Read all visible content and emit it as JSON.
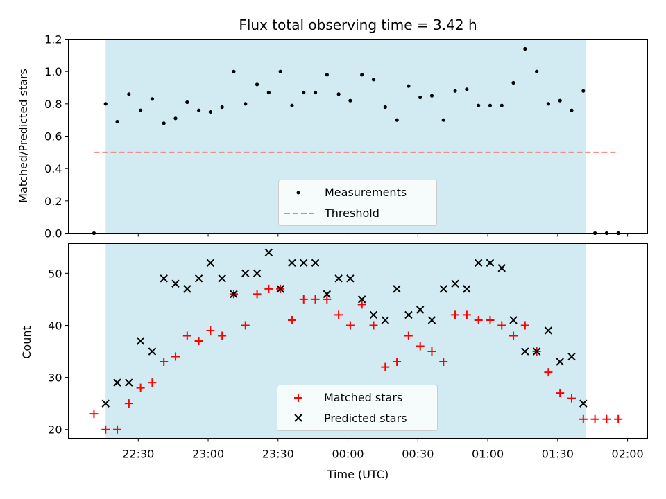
{
  "colors": {
    "shade": "#add8e6",
    "measurement": "#000000",
    "threshold": "#f08080",
    "matched": "#ff0000",
    "predicted": "#000000"
  },
  "chart_data": [
    {
      "type": "scatter",
      "title": "Flux total observing time = 3.42 h",
      "ylabel": "Matched/Predicted stars",
      "xlabel": "",
      "ylim": [
        0,
        1.2
      ],
      "yticks": [
        "0.0",
        "0.2",
        "0.4",
        "0.6",
        "0.8",
        "1.0",
        "1.2"
      ],
      "shaded_interval": [
        "22:16",
        "01:42"
      ],
      "legend_position": "lower center",
      "series": [
        {
          "name": "Measurements",
          "marker": "dot",
          "x": [
            "22:11",
            "22:16",
            "22:21",
            "22:26",
            "22:31",
            "22:36",
            "22:41",
            "22:46",
            "22:51",
            "22:56",
            "23:01",
            "23:06",
            "23:11",
            "23:16",
            "23:21",
            "23:26",
            "23:31",
            "23:36",
            "23:41",
            "23:46",
            "23:51",
            "23:56",
            "00:01",
            "00:06",
            "00:11",
            "00:16",
            "00:21",
            "00:26",
            "00:31",
            "00:36",
            "00:41",
            "00:46",
            "00:51",
            "00:56",
            "01:01",
            "01:06",
            "01:11",
            "01:16",
            "01:21",
            "01:26",
            "01:31",
            "01:36",
            "01:41",
            "01:46",
            "01:51",
            "01:56"
          ],
          "y": [
            0.0,
            0.8,
            0.69,
            0.86,
            0.76,
            0.83,
            0.68,
            0.71,
            0.81,
            0.76,
            0.75,
            0.78,
            1.0,
            0.8,
            0.92,
            0.87,
            1.0,
            0.79,
            0.87,
            0.87,
            0.98,
            0.86,
            0.82,
            0.98,
            0.95,
            0.78,
            0.7,
            0.91,
            0.84,
            0.85,
            0.7,
            0.88,
            0.89,
            0.79,
            0.79,
            0.79,
            0.93,
            1.14,
            1.0,
            0.8,
            0.82,
            0.76,
            0.88,
            0.0,
            0.0,
            0.0
          ]
        },
        {
          "name": "Threshold",
          "style": "dashed",
          "x": [
            "22:11",
            "01:56"
          ],
          "y": [
            0.5,
            0.5
          ]
        }
      ]
    },
    {
      "type": "scatter",
      "title": "",
      "ylabel": "Count",
      "xlabel": "Time (UTC)",
      "ylim": [
        18.3,
        55.7
      ],
      "yticks": [
        "20",
        "30",
        "40",
        "50"
      ],
      "xticks": [
        "22:30",
        "23:00",
        "23:30",
        "00:00",
        "00:30",
        "01:00",
        "01:30",
        "02:00"
      ],
      "shaded_interval": [
        "22:16",
        "01:42"
      ],
      "legend_position": "lower center",
      "series": [
        {
          "name": "Matched stars",
          "marker": "plus",
          "x": [
            "22:11",
            "22:16",
            "22:21",
            "22:26",
            "22:31",
            "22:36",
            "22:41",
            "22:46",
            "22:51",
            "22:56",
            "23:01",
            "23:06",
            "23:11",
            "23:16",
            "23:21",
            "23:26",
            "23:31",
            "23:36",
            "23:41",
            "23:46",
            "23:51",
            "23:56",
            "00:01",
            "00:06",
            "00:11",
            "00:16",
            "00:21",
            "00:26",
            "00:31",
            "00:36",
            "00:41",
            "00:46",
            "00:51",
            "00:56",
            "01:01",
            "01:06",
            "01:11",
            "01:16",
            "01:21",
            "01:26",
            "01:31",
            "01:36",
            "01:41",
            "01:46",
            "01:51",
            "01:56"
          ],
          "y": [
            23,
            20,
            20,
            25,
            28,
            29,
            33,
            34,
            38,
            37,
            39,
            38,
            46,
            40,
            46,
            47,
            47,
            41,
            45,
            45,
            45,
            42,
            40,
            44,
            40,
            32,
            33,
            38,
            36,
            35,
            33,
            42,
            42,
            41,
            41,
            40,
            38,
            40,
            35,
            31,
            27,
            26,
            22,
            22,
            22,
            22
          ]
        },
        {
          "name": "Predicted stars",
          "marker": "x",
          "x": [
            "22:16",
            "22:21",
            "22:26",
            "22:31",
            "22:36",
            "22:41",
            "22:46",
            "22:51",
            "22:56",
            "23:01",
            "23:06",
            "23:11",
            "23:16",
            "23:21",
            "23:26",
            "23:31",
            "23:36",
            "23:41",
            "23:46",
            "23:51",
            "23:56",
            "00:01",
            "00:06",
            "00:11",
            "00:16",
            "00:21",
            "00:26",
            "00:31",
            "00:36",
            "00:41",
            "00:46",
            "00:51",
            "00:56",
            "01:01",
            "01:06",
            "01:11",
            "01:16",
            "01:21",
            "01:26",
            "01:31",
            "01:36",
            "01:41"
          ],
          "y": [
            25,
            29,
            29,
            37,
            35,
            49,
            48,
            47,
            49,
            52,
            49,
            46,
            50,
            50,
            54,
            47,
            52,
            52,
            52,
            46,
            49,
            49,
            45,
            42,
            41,
            47,
            42,
            43,
            41,
            47,
            48,
            47,
            52,
            52,
            51,
            41,
            35,
            35,
            39,
            33,
            34,
            25
          ]
        }
      ]
    }
  ]
}
